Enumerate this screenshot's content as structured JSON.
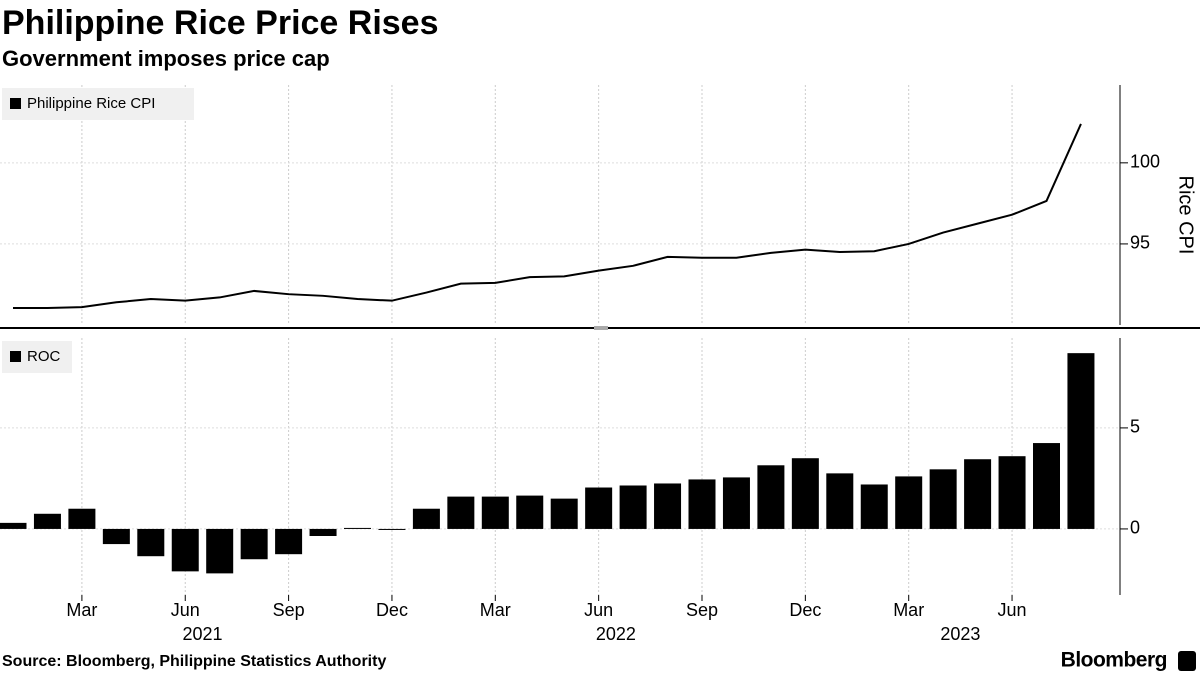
{
  "title": "Philippine Rice Price Rises",
  "subtitle": "Government imposes price cap",
  "source": "Source: Bloomberg, Philippine Statistics Authority",
  "brand": "Bloomberg",
  "chart_data": [
    {
      "type": "line",
      "x": [
        "2021-01",
        "2021-02",
        "2021-03",
        "2021-04",
        "2021-05",
        "2021-06",
        "2021-07",
        "2021-08",
        "2021-09",
        "2021-10",
        "2021-11",
        "2021-12",
        "2022-01",
        "2022-02",
        "2022-03",
        "2022-04",
        "2022-05",
        "2022-06",
        "2022-07",
        "2022-08",
        "2022-09",
        "2022-10",
        "2022-11",
        "2022-12",
        "2023-01",
        "2023-02",
        "2023-03",
        "2023-04",
        "2023-05",
        "2023-06",
        "2023-07",
        "2023-08"
      ],
      "series": [
        {
          "name": "Philippine Rice CPI",
          "color": "#000000",
          "values": [
            91.05,
            91.05,
            91.1,
            91.4,
            91.6,
            91.5,
            91.7,
            92.1,
            91.9,
            91.8,
            91.6,
            91.5,
            92.0,
            92.55,
            92.6,
            92.95,
            93.0,
            93.35,
            93.65,
            94.2,
            94.15,
            94.15,
            94.45,
            94.65,
            94.5,
            94.55,
            95.0,
            95.7,
            96.25,
            96.8,
            97.65,
            102.4
          ]
        }
      ],
      "ylabel": "Rice CPI",
      "ylim": [
        90,
        104.8
      ],
      "yticks": [
        95,
        100
      ],
      "grid": true
    },
    {
      "type": "bar",
      "x": [
        "2021-01",
        "2021-02",
        "2021-03",
        "2021-04",
        "2021-05",
        "2021-06",
        "2021-07",
        "2021-08",
        "2021-09",
        "2021-10",
        "2021-11",
        "2021-12",
        "2022-01",
        "2022-02",
        "2022-03",
        "2022-04",
        "2022-05",
        "2022-06",
        "2022-07",
        "2022-08",
        "2022-09",
        "2022-10",
        "2022-11",
        "2022-12",
        "2023-01",
        "2023-02",
        "2023-03",
        "2023-04",
        "2023-05",
        "2023-06",
        "2023-07",
        "2023-08"
      ],
      "series": [
        {
          "name": "ROC",
          "color": "#000000",
          "values": [
            0.3,
            0.75,
            1.0,
            -0.75,
            -1.35,
            -2.1,
            -2.2,
            -1.5,
            -1.25,
            -0.35,
            0.05,
            -0.05,
            1.0,
            1.6,
            1.6,
            1.65,
            1.5,
            2.05,
            2.15,
            2.25,
            2.45,
            2.55,
            3.15,
            3.5,
            2.75,
            2.2,
            2.6,
            2.95,
            3.45,
            3.6,
            4.25,
            8.7
          ]
        }
      ],
      "ylim": [
        -3.27,
        9.45
      ],
      "yticks": [
        0,
        5
      ],
      "grid": true,
      "xticks": [
        {
          "value": "2021-03",
          "label": "Mar"
        },
        {
          "value": "2021-06",
          "label": "Jun"
        },
        {
          "value": "2021-09",
          "label": "Sep"
        },
        {
          "value": "2021-12",
          "label": "Dec"
        },
        {
          "value": "2022-03",
          "label": "Mar"
        },
        {
          "value": "2022-06",
          "label": "Jun"
        },
        {
          "value": "2022-09",
          "label": "Sep"
        },
        {
          "value": "2022-12",
          "label": "Dec"
        },
        {
          "value": "2023-03",
          "label": "Mar"
        },
        {
          "value": "2023-06",
          "label": "Jun"
        }
      ],
      "years": [
        "2021",
        "2022",
        "2023"
      ]
    }
  ]
}
